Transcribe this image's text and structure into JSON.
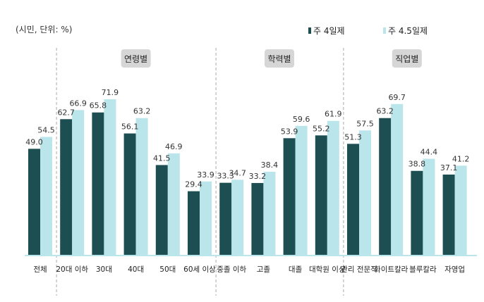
{
  "chart_data": {
    "type": "bar",
    "unit_note": "(시민, 단위: %)",
    "categories": [
      "전체",
      "20대 이하",
      "30대",
      "40대",
      "50대",
      "60세 이상",
      "중졸 이하",
      "고졸",
      "대졸",
      "대학원 이상",
      "관리 전문직",
      "화이트칼라",
      "블루칼라",
      "자영업"
    ],
    "groups": [
      {
        "label": "연령별",
        "from": 1,
        "to": 5
      },
      {
        "label": "학력별",
        "from": 6,
        "to": 9
      },
      {
        "label": "직업별",
        "from": 10,
        "to": 13
      }
    ],
    "series": [
      {
        "name": "주 4일제",
        "color": "#1d4f52",
        "values": [
          49.0,
          62.7,
          65.8,
          56.1,
          41.5,
          29.4,
          33.3,
          33.2,
          53.9,
          55.2,
          51.3,
          63.2,
          38.8,
          37.1
        ]
      },
      {
        "name": "주 4.5일제",
        "color": "#b9e5eb",
        "values": [
          54.5,
          66.9,
          71.9,
          63.2,
          46.9,
          33.9,
          34.7,
          38.4,
          59.6,
          61.9,
          57.5,
          69.7,
          44.4,
          41.2
        ]
      }
    ],
    "ylim": [
      0,
      75
    ],
    "grid": false,
    "legend": "top-right"
  }
}
